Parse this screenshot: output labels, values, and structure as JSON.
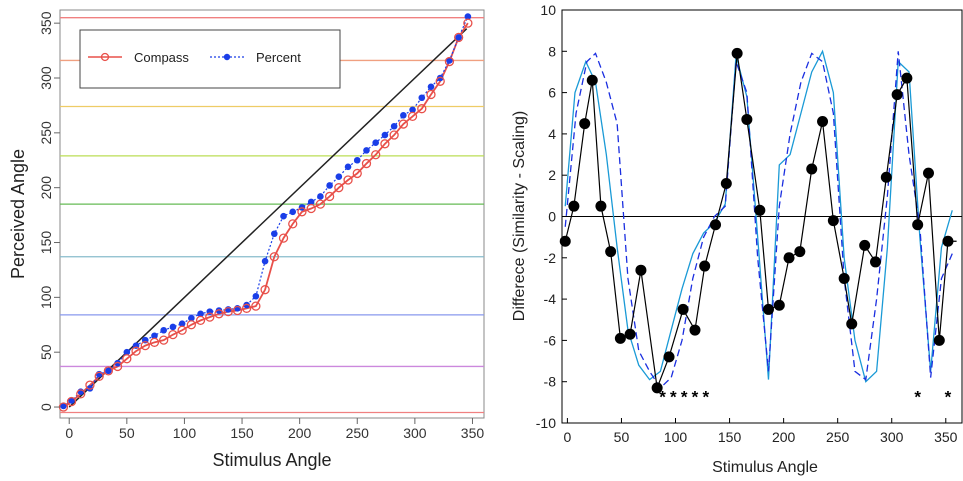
{
  "chart_data": [
    {
      "type": "line",
      "xlabel": "Stimulus Angle",
      "ylabel": "Perceived Angle",
      "xlim": [
        -8,
        360
      ],
      "ylim": [
        -10,
        362
      ],
      "xticks": [
        0,
        50,
        100,
        150,
        200,
        250,
        300,
        350
      ],
      "yticks": [
        0,
        50,
        100,
        150,
        200,
        250,
        300,
        350
      ],
      "xtick_labels": [
        "0",
        "50",
        "100",
        "150",
        "200",
        "250",
        "300",
        "350"
      ],
      "ytick_labels": [
        "0",
        "50",
        "100",
        "150",
        "200",
        "250",
        "300",
        "350"
      ],
      "reference_lines": [
        {
          "y": -5,
          "color": "#f08080"
        },
        {
          "y": 37,
          "color": "#cc88dd"
        },
        {
          "y": 84,
          "color": "#8899ee"
        },
        {
          "y": 137,
          "color": "#88bbcc"
        },
        {
          "y": 185,
          "color": "#66bb55"
        },
        {
          "y": 229,
          "color": "#bbdd55"
        },
        {
          "y": 274,
          "color": "#eecc66"
        },
        {
          "y": 316,
          "color": "#f0a080"
        },
        {
          "y": 355,
          "color": "#f08080"
        }
      ],
      "identity_line": [
        [
          0,
          0
        ],
        [
          345,
          345
        ]
      ],
      "legend": {
        "position": "top-left"
      },
      "series": [
        {
          "name": "Compass",
          "color": "#e8504a",
          "x": [
            -5,
            2,
            10,
            18,
            26,
            34,
            42,
            50,
            58,
            66,
            74,
            82,
            90,
            98,
            106,
            114,
            122,
            130,
            138,
            146,
            154,
            162,
            170,
            178,
            186,
            194,
            202,
            210,
            218,
            226,
            234,
            242,
            250,
            258,
            266,
            274,
            282,
            290,
            298,
            306,
            314,
            322,
            330,
            338,
            346
          ],
          "y": [
            0,
            5,
            12,
            20,
            28,
            33,
            37,
            44,
            51,
            56,
            59,
            61,
            66,
            70,
            75,
            79,
            82,
            85,
            87,
            88,
            90,
            92,
            107,
            137,
            154,
            167,
            178,
            181,
            185,
            192,
            200,
            207,
            213,
            222,
            230,
            240,
            248,
            258,
            265,
            272,
            285,
            297,
            315,
            337,
            350
          ]
        },
        {
          "name": "Percent",
          "color": "#1a3ee8",
          "x": [
            -5,
            2,
            10,
            18,
            26,
            34,
            42,
            50,
            58,
            66,
            74,
            82,
            90,
            98,
            106,
            114,
            122,
            130,
            138,
            146,
            154,
            162,
            170,
            178,
            186,
            194,
            202,
            210,
            218,
            226,
            234,
            242,
            250,
            258,
            266,
            274,
            282,
            290,
            298,
            306,
            314,
            322,
            330,
            338,
            346
          ],
          "y": [
            1,
            6,
            14,
            17,
            30,
            33,
            40,
            50,
            56,
            61,
            65,
            70,
            73,
            76,
            81,
            85,
            87,
            88,
            89,
            90,
            93,
            101,
            133,
            158,
            174,
            178,
            182,
            187,
            192,
            202,
            210,
            219,
            225,
            234,
            241,
            248,
            256,
            266,
            271,
            282,
            292,
            300,
            316,
            337,
            356
          ]
        }
      ]
    },
    {
      "type": "line",
      "xlabel": "Stimulus Angle",
      "ylabel": "Differece (Similarity - Scaling)",
      "xlim": [
        -5,
        365
      ],
      "ylim": [
        -10,
        10
      ],
      "xticks": [
        0,
        50,
        100,
        150,
        200,
        250,
        300,
        350
      ],
      "yticks": [
        -10,
        -8,
        -6,
        -4,
        -2,
        0,
        2,
        4,
        6,
        8,
        10
      ],
      "xtick_labels": [
        "0",
        "50",
        "100",
        "150",
        "200",
        "250",
        "300",
        "350"
      ],
      "ytick_labels": [
        "-10",
        "-8",
        "-6",
        "-4",
        "-2",
        "0",
        "2",
        "4",
        "6",
        "8",
        "10"
      ],
      "zero_line": 0,
      "significance_markers": [
        {
          "x": 88,
          "label": "*"
        },
        {
          "x": 98,
          "label": "*"
        },
        {
          "x": 108,
          "label": "*"
        },
        {
          "x": 118,
          "label": "*"
        },
        {
          "x": 128,
          "label": "*"
        },
        {
          "x": 324,
          "label": "*"
        },
        {
          "x": 352,
          "label": "*"
        }
      ],
      "series": [
        {
          "style": "points",
          "color": "#000000",
          "x": [
            -2,
            6,
            16,
            23,
            31,
            40,
            49,
            58,
            68,
            83,
            94,
            107,
            118,
            127,
            137,
            147,
            157,
            166,
            178,
            186,
            196,
            205,
            215,
            226,
            236,
            246,
            256,
            263,
            275,
            285,
            295,
            305,
            314,
            324,
            334,
            344,
            352,
            360
          ],
          "y": [
            -1.2,
            0.5,
            4.5,
            6.6,
            0.5,
            -1.7,
            -5.9,
            -5.7,
            -2.6,
            -8.3,
            -6.8,
            -4.5,
            -5.5,
            -2.4,
            -0.4,
            1.6,
            7.9,
            4.7,
            0.3,
            -4.5,
            -4.3,
            -2.0,
            -1.7,
            2.3,
            4.6,
            -0.2,
            -3.0,
            -5.2,
            -1.4,
            -2.2,
            1.9,
            5.9,
            6.7,
            -0.4,
            2.1,
            -6.0,
            -1.2,
            -1.2
          ]
        },
        {
          "style": "line",
          "color": "#1a9ad6",
          "x": [
            -2,
            7,
            17,
            26,
            36,
            46,
            56,
            66,
            76,
            86,
            96,
            106,
            116,
            126,
            136,
            146,
            156,
            166,
            176,
            186,
            196,
            206,
            216,
            226,
            236,
            246,
            256,
            266,
            276,
            286,
            296,
            306,
            316,
            326,
            336,
            346,
            356
          ],
          "y": [
            0.5,
            6.0,
            7.5,
            6.5,
            3.0,
            -1.5,
            -5.5,
            -7.2,
            -7.9,
            -7.5,
            -5.5,
            -3.5,
            -1.8,
            -0.8,
            -0.3,
            0.6,
            7.8,
            5.8,
            -1.0,
            -7.9,
            2.5,
            3.0,
            5.0,
            7.0,
            8.0,
            6.0,
            -2.0,
            -6.0,
            -8.0,
            -7.5,
            -1.5,
            7.5,
            7.0,
            -1.0,
            -7.5,
            -1.5,
            0.3
          ]
        },
        {
          "style": "dashed",
          "color": "#1a2ee0",
          "x": [
            -2,
            8,
            18,
            26,
            36,
            46,
            56,
            66,
            76,
            86,
            96,
            106,
            116,
            126,
            136,
            146,
            156,
            166,
            176,
            186,
            196,
            206,
            216,
            226,
            236,
            246,
            256,
            266,
            276,
            286,
            296,
            306,
            316,
            326,
            336,
            346,
            356
          ],
          "y": [
            -0.5,
            5.0,
            7.5,
            7.9,
            6.5,
            4.5,
            -3.0,
            -6.5,
            -7.5,
            -8.3,
            -7.8,
            -6.0,
            -3.0,
            -1.0,
            0.0,
            0.5,
            7.5,
            6.0,
            -2.0,
            -7.5,
            0.5,
            4.0,
            6.5,
            7.9,
            7.5,
            5.0,
            -3.0,
            -7.5,
            -7.9,
            -4.0,
            1.0,
            8.0,
            3.0,
            -0.5,
            -7.8,
            -3.0,
            -1.8
          ]
        }
      ]
    }
  ]
}
